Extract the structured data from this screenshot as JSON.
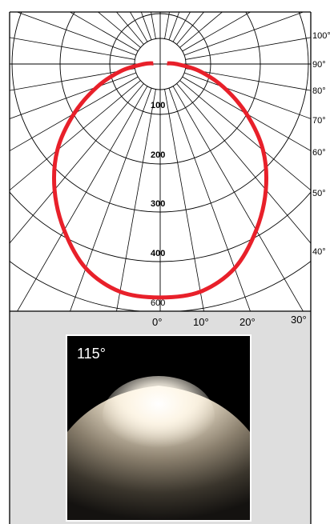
{
  "chart_data": {
    "type": "polar-luminous-intensity",
    "beam_angle_label": "115°",
    "angle_labels_right": [
      "100°",
      "90°",
      "80°",
      "70°",
      "60°",
      "50°",
      "40°"
    ],
    "angle_labels_bottom": [
      "0°",
      "10°",
      "20°",
      "30°"
    ],
    "radial_labels": [
      "100",
      "200",
      "300",
      "400",
      "600"
    ],
    "curve": {
      "color": "#e8202a",
      "points_deg_value": [
        [
          0,
          505
        ],
        [
          10,
          500
        ],
        [
          20,
          470
        ],
        [
          30,
          415
        ],
        [
          40,
          355
        ],
        [
          50,
          290
        ],
        [
          60,
          215
        ],
        [
          70,
          145
        ],
        [
          80,
          85
        ],
        [
          90,
          35
        ],
        [
          95,
          15
        ]
      ]
    }
  },
  "colors": {
    "grid": "#000000",
    "panel_bg": "#dedede",
    "curve": "#e8202a"
  }
}
